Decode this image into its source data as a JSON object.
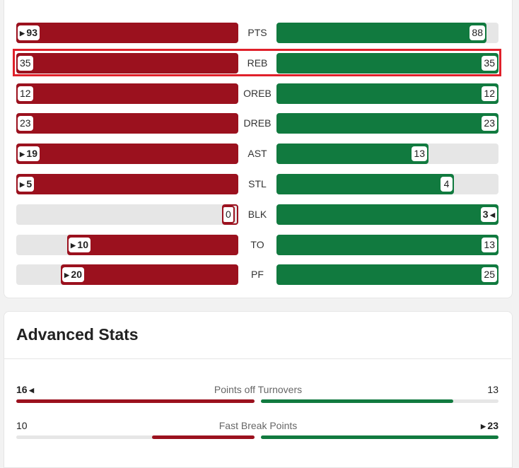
{
  "colors": {
    "away": "#9b111e",
    "home": "#117a3f",
    "track": "#e6e6e6",
    "highlight": "#e0202a"
  },
  "max_values": {
    "PTS": 93,
    "REB": 35,
    "OREB": 12,
    "DREB": 23,
    "AST": 19,
    "STL": 5,
    "BLK": 3,
    "TO": 13,
    "PF": 25
  },
  "team_stats": [
    {
      "label": "PTS",
      "left": "93",
      "right": "88",
      "leader": "left"
    },
    {
      "label": "REB",
      "left": "35",
      "right": "35",
      "leader": "none"
    },
    {
      "label": "OREB",
      "left": "12",
      "right": "12",
      "leader": "none"
    },
    {
      "label": "DREB",
      "left": "23",
      "right": "23",
      "leader": "none"
    },
    {
      "label": "AST",
      "left": "19",
      "right": "13",
      "leader": "left"
    },
    {
      "label": "STL",
      "left": "5",
      "right": "4",
      "leader": "left"
    },
    {
      "label": "BLK",
      "left": "0",
      "right": "3",
      "leader": "right"
    },
    {
      "label": "TO",
      "left": "10",
      "right": "13",
      "leader": "left"
    },
    {
      "label": "PF",
      "left": "20",
      "right": "25",
      "leader": "left"
    }
  ],
  "highlighted_row": "REB",
  "advanced": {
    "title": "Advanced Stats",
    "rows": [
      {
        "label": "Points off Turnovers",
        "left": "16",
        "right": "13",
        "leader": "left",
        "left_fraction": 1.0,
        "right_fraction": 0.81
      },
      {
        "label": "Fast Break Points",
        "left": "10",
        "right": "23",
        "leader": "right",
        "left_fraction": 0.43,
        "right_fraction": 1.0
      }
    ]
  }
}
